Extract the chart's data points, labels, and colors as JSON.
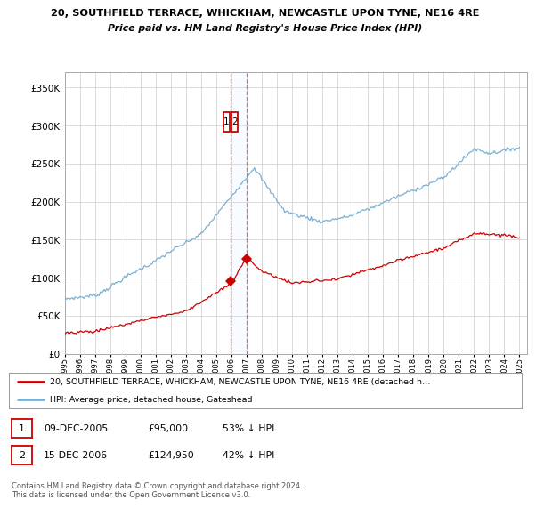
{
  "title1": "20, SOUTHFIELD TERRACE, WHICKHAM, NEWCASTLE UPON TYNE, NE16 4RE",
  "title2": "Price paid vs. HM Land Registry's House Price Index (HPI)",
  "yticks": [
    0,
    50000,
    100000,
    150000,
    200000,
    250000,
    300000,
    350000
  ],
  "xlim_start": 1995.0,
  "xlim_end": 2025.5,
  "ylim": [
    0,
    370000
  ],
  "legend_red": "20, SOUTHFIELD TERRACE, WHICKHAM, NEWCASTLE UPON TYNE, NE16 4RE (detached h…",
  "legend_blue": "HPI: Average price, detached house, Gateshead",
  "sale1_date": 2005.94,
  "sale1_price": 95000,
  "sale2_date": 2006.96,
  "sale2_price": 124950,
  "sale1_text_col1": "09-DEC-2005",
  "sale1_text_col2": "£95,000",
  "sale1_text_col3": "53% ↓ HPI",
  "sale2_text_col1": "15-DEC-2006",
  "sale2_text_col2": "£124,950",
  "sale2_text_col3": "42% ↓ HPI",
  "copyright_text": "Contains HM Land Registry data © Crown copyright and database right 2024.\nThis data is licensed under the Open Government Licence v3.0.",
  "background_color": "#ffffff",
  "grid_color": "#cccccc",
  "red_color": "#cc0000",
  "blue_color": "#7ab0d4",
  "vline_color": "#cc4444",
  "span_color": "#ddeeff"
}
